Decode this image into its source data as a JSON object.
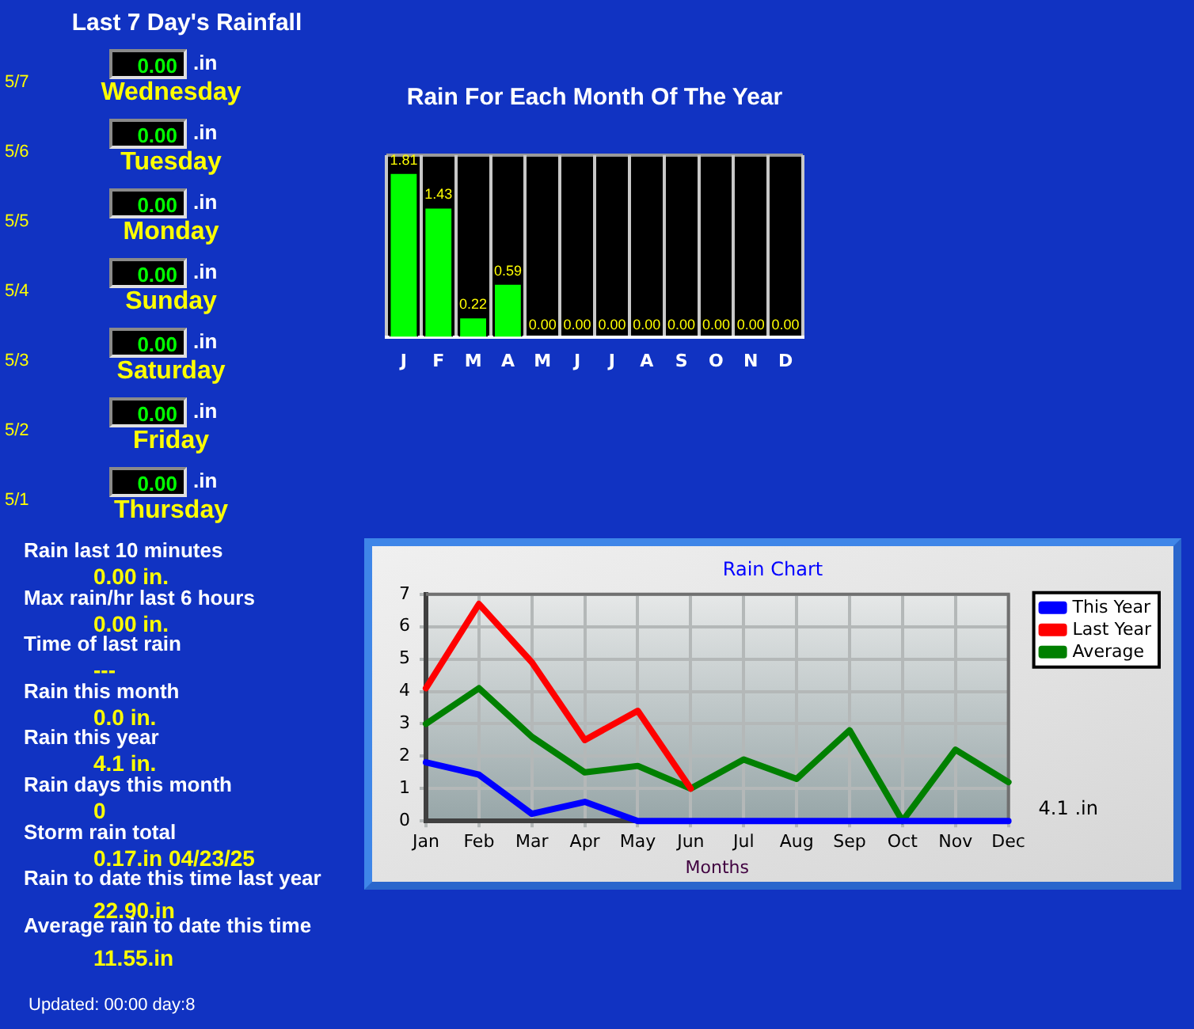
{
  "chart_data": [
    {
      "type": "other",
      "title": "Last 7 Day's Rainfall",
      "annotations": [
        "5/7",
        "0.00",
        ".in",
        "Wednesday",
        "5/6",
        "0.00",
        ".in",
        "Tuesday",
        "5/5",
        "0.00",
        ".in",
        "Monday",
        "5/4",
        "0.00",
        ".in",
        "Sunday",
        "5/3",
        "0.00",
        ".in",
        "Saturday",
        "5/2",
        "0.00",
        ".in",
        "Friday",
        "5/1",
        "0.00",
        ".in",
        "Thursday"
      ]
    },
    {
      "type": "bar",
      "title": "Rain For Each Month Of The Year",
      "categories": [
        "J",
        "F",
        "M",
        "A",
        "M",
        "J",
        "J",
        "A",
        "S",
        "O",
        "N",
        "D"
      ],
      "values": [
        1.81,
        1.43,
        0.22,
        0.59,
        0,
        0,
        0,
        0,
        0,
        0,
        0,
        0
      ],
      "value_labels": [
        "1.81",
        "1.43",
        "0.22",
        "0.59",
        "0.00",
        "0.00",
        "0.00",
        "0.00",
        "0.00",
        "0.00",
        "0.00",
        "0.00"
      ],
      "color": "#00ff00",
      "ylim": [
        0,
        2
      ],
      "tick_labels": "x",
      "grid": "x"
    },
    {
      "type": "other",
      "annotations": [
        "Rain last 10 minutes",
        "0.00 in.",
        "Max rain/hr last 6 hours",
        "0.00 in.",
        "Time of last rain",
        "---",
        "Rain this month",
        "0.0 in.",
        "Rain this year",
        "4.1 in.",
        "Rain days this month",
        "0",
        "Storm rain total",
        "0.17.in 04/23/25",
        "Rain to date this time last year",
        "22.90.in",
        "Average rain to date this time",
        "11.55.in",
        "Updated: 00:00 day:8"
      ]
    },
    {
      "type": "line",
      "title": "Rain Chart",
      "xlabel": "Months",
      "categories": [
        "Jan",
        "Feb",
        "Mar",
        "Apr",
        "May",
        "Jun",
        "Jul",
        "Aug",
        "Sep",
        "Oct",
        "Nov",
        "Dec"
      ],
      "series": [
        {
          "name": "This Year",
          "color": "#0000ff",
          "values": [
            1.81,
            1.43,
            0.22,
            0.59,
            0,
            0,
            0,
            0,
            0,
            0,
            0,
            0
          ]
        },
        {
          "name": "Last Year",
          "color": "#ff0000",
          "values": [
            4.1,
            6.7,
            4.9,
            2.5,
            3.4,
            1.0,
            null,
            null,
            null,
            null,
            null,
            null
          ]
        },
        {
          "name": "Average",
          "color": "#008000",
          "values": [
            3.0,
            4.1,
            2.6,
            1.5,
            1.7,
            1.0,
            1.9,
            1.3,
            2.8,
            0,
            2.2,
            1.2
          ]
        }
      ],
      "ylim": [
        0,
        7
      ],
      "yticks": [
        0,
        1,
        2,
        3,
        4,
        5,
        6,
        7
      ],
      "grid": true,
      "legend": "top right",
      "marker": "none",
      "line_style": "solid",
      "annotations": [
        "4.1 .in"
      ]
    }
  ]
}
